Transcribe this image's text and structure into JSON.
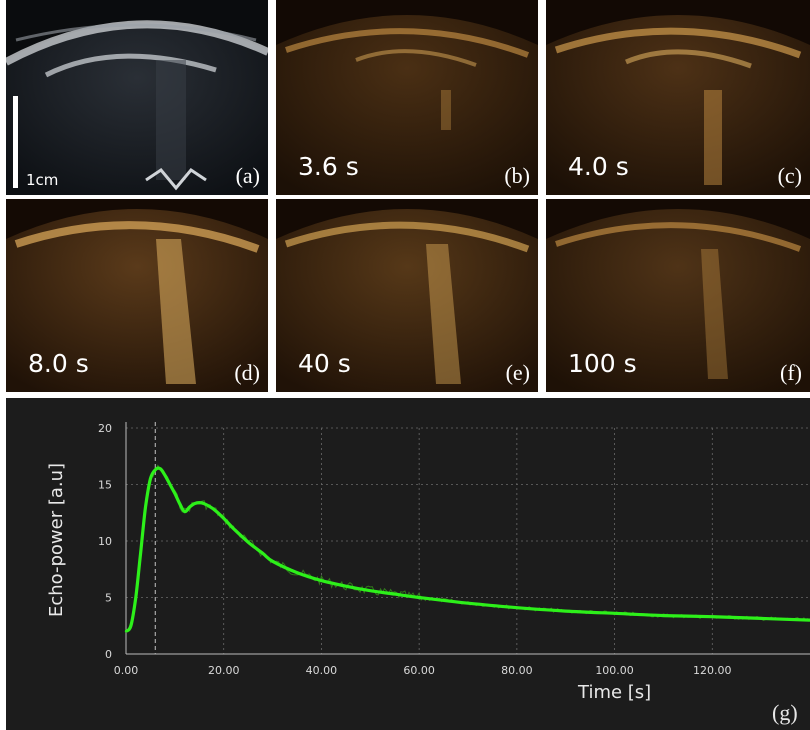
{
  "panels": [
    {
      "letter": "(a)",
      "time": "",
      "scale": "1cm",
      "mode": "bmode"
    },
    {
      "letter": "(b)",
      "time": "3.6 s",
      "mode": "contrast"
    },
    {
      "letter": "(c)",
      "time": "4.0 s",
      "mode": "contrast"
    },
    {
      "letter": "(d)",
      "time": "8.0 s",
      "mode": "contrast"
    },
    {
      "letter": "(e)",
      "time": "40 s",
      "mode": "contrast"
    },
    {
      "letter": "(f)",
      "time": "100 s",
      "mode": "contrast"
    }
  ],
  "colors": {
    "curve": "#2df01a",
    "noise": "#3aa01c",
    "grid": "#6a6a6a",
    "background": "#1c1c1c",
    "contrast_tissue": "#d29a4a",
    "bmode_tissue": "#c8ccd0"
  },
  "chart_data": {
    "type": "line",
    "title": "",
    "xlabel": "Time [s]",
    "ylabel": "Echo-power [a.u]",
    "panel_letter": "(g)",
    "xlim": [
      0,
      140
    ],
    "ylim": [
      0,
      20
    ],
    "xticks": [
      0,
      20,
      40,
      60,
      80,
      100,
      120
    ],
    "xtick_labels": [
      "0.00",
      "20.00",
      "40.00",
      "60.00",
      "80.00",
      "100.00",
      "120.00"
    ],
    "yticks": [
      0,
      5,
      10,
      15,
      20
    ],
    "ytick_labels": [
      "0",
      "5",
      "10",
      "15",
      "20"
    ],
    "grid": true,
    "vline_x": 6,
    "series": [
      {
        "x": [
          0,
          1,
          2,
          3,
          4,
          5,
          6,
          7,
          8,
          9,
          10,
          11,
          12,
          13,
          14,
          15,
          16,
          18,
          20,
          22,
          25,
          28,
          30,
          35,
          40,
          45,
          50,
          55,
          60,
          70,
          80,
          90,
          100,
          110,
          120,
          130,
          140
        ],
        "values": [
          2.0,
          2.5,
          5.0,
          9.0,
          13.0,
          15.5,
          16.3,
          16.4,
          15.8,
          15.0,
          14.2,
          13.3,
          12.6,
          13.0,
          13.3,
          13.4,
          13.3,
          12.8,
          12.0,
          11.1,
          9.9,
          8.9,
          8.2,
          7.2,
          6.5,
          6.0,
          5.6,
          5.3,
          5.0,
          4.5,
          4.1,
          3.8,
          3.6,
          3.4,
          3.3,
          3.15,
          3.0
        ]
      }
    ]
  }
}
